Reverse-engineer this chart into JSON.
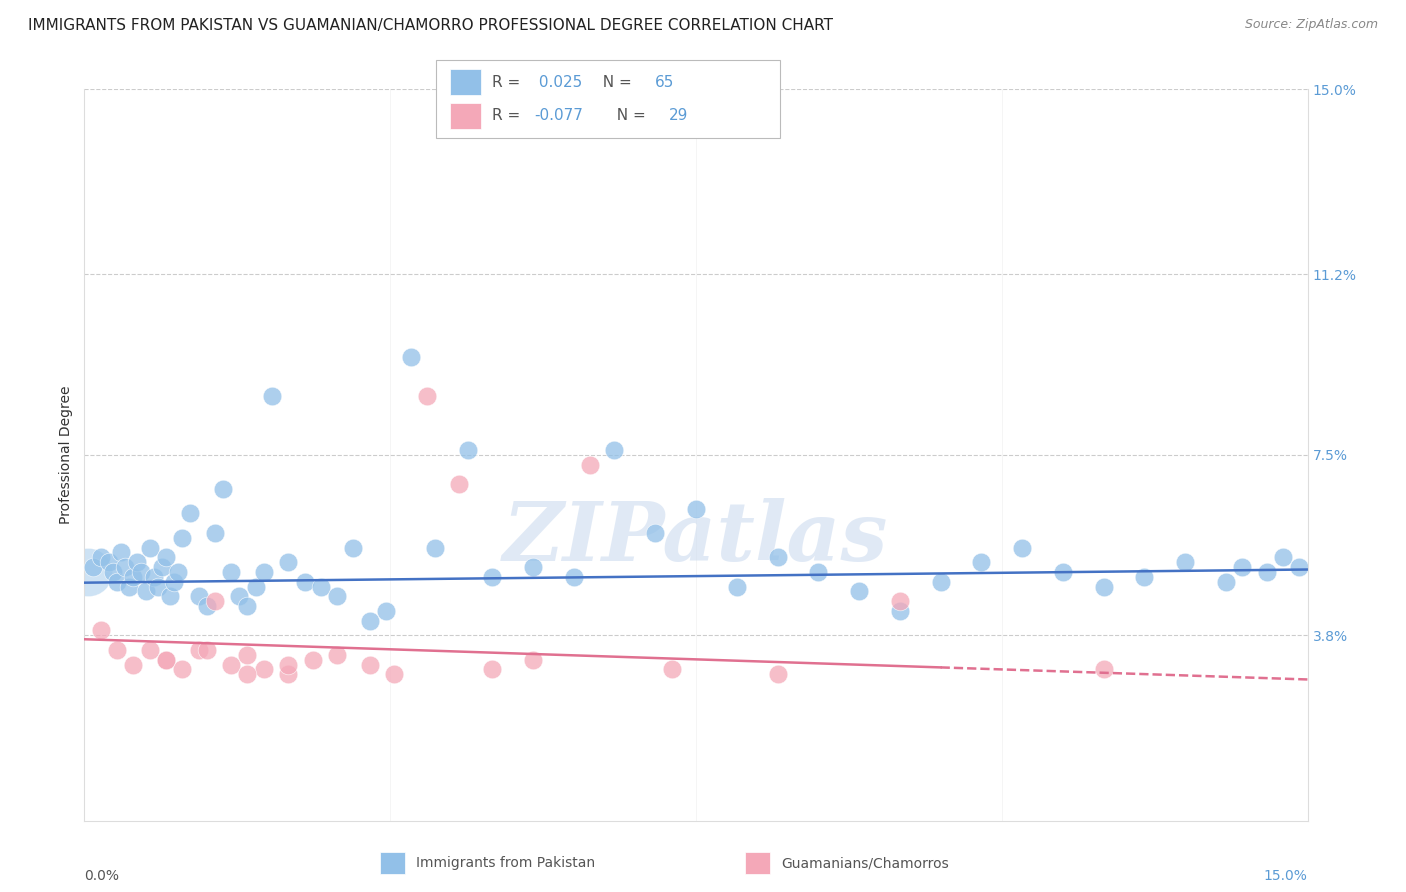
{
  "title": "IMMIGRANTS FROM PAKISTAN VS GUAMANIAN/CHAMORRO PROFESSIONAL DEGREE CORRELATION CHART",
  "source_text": "Source: ZipAtlas.com",
  "ylabel": "Professional Degree",
  "xlim": [
    0.0,
    15.0
  ],
  "ylim": [
    0.0,
    15.0
  ],
  "legend_label1": "Immigrants from Pakistan",
  "legend_label2": "Guamanians/Chamorros",
  "r1": 0.025,
  "n1": 65,
  "r2": -0.077,
  "n2": 29,
  "blue_color": "#92C0E8",
  "pink_color": "#F4A8B8",
  "blue_line_color": "#4472C4",
  "pink_line_color": "#E07090",
  "background_color": "#FFFFFF",
  "grid_color": "#CCCCCC",
  "ytick_vals": [
    3.8,
    7.5,
    11.2,
    15.0
  ],
  "ytick_labels": [
    "3.8%",
    "7.5%",
    "11.2%",
    "15.0%"
  ],
  "blue_x": [
    0.1,
    0.2,
    0.3,
    0.35,
    0.4,
    0.45,
    0.5,
    0.55,
    0.6,
    0.65,
    0.7,
    0.75,
    0.8,
    0.85,
    0.9,
    0.95,
    1.0,
    1.05,
    1.1,
    1.15,
    1.2,
    1.3,
    1.4,
    1.5,
    1.6,
    1.7,
    1.8,
    1.9,
    2.0,
    2.1,
    2.2,
    2.3,
    2.5,
    2.7,
    2.9,
    3.1,
    3.3,
    3.5,
    3.7,
    4.0,
    4.3,
    4.7,
    5.0,
    5.5,
    6.0,
    6.5,
    7.0,
    7.5,
    8.0,
    8.5,
    9.0,
    9.5,
    10.0,
    10.5,
    11.0,
    11.5,
    12.0,
    12.5,
    13.0,
    13.5,
    14.0,
    14.2,
    14.5,
    14.7,
    14.9
  ],
  "blue_y": [
    5.2,
    5.4,
    5.3,
    5.1,
    4.9,
    5.5,
    5.2,
    4.8,
    5.0,
    5.3,
    5.1,
    4.7,
    5.6,
    5.0,
    4.8,
    5.2,
    5.4,
    4.6,
    4.9,
    5.1,
    5.8,
    6.3,
    4.6,
    4.4,
    5.9,
    6.8,
    5.1,
    4.6,
    4.4,
    4.8,
    5.1,
    8.7,
    5.3,
    4.9,
    4.8,
    4.6,
    5.6,
    4.1,
    4.3,
    9.5,
    5.6,
    7.6,
    5.0,
    5.2,
    5.0,
    7.6,
    5.9,
    6.4,
    4.8,
    5.4,
    5.1,
    4.7,
    4.3,
    4.9,
    5.3,
    5.6,
    5.1,
    4.8,
    5.0,
    5.3,
    4.9,
    5.2,
    5.1,
    5.4,
    5.2
  ],
  "blue_large_x": [
    0.05
  ],
  "blue_large_y": [
    5.1
  ],
  "pink_x": [
    0.2,
    0.4,
    0.6,
    0.8,
    1.0,
    1.2,
    1.4,
    1.6,
    1.8,
    2.0,
    2.2,
    2.5,
    2.8,
    3.1,
    3.5,
    3.8,
    4.2,
    4.6,
    5.0,
    5.5,
    6.2,
    7.2,
    8.5,
    10.0,
    12.5,
    1.0,
    1.5,
    2.0,
    2.5
  ],
  "pink_y": [
    3.9,
    3.5,
    3.2,
    3.5,
    3.3,
    3.1,
    3.5,
    4.5,
    3.2,
    3.4,
    3.1,
    3.0,
    3.3,
    3.4,
    3.2,
    3.0,
    8.7,
    6.9,
    3.1,
    3.3,
    7.3,
    3.1,
    3.0,
    4.5,
    3.1,
    3.3,
    3.5,
    3.0,
    3.2
  ],
  "watermark_text": "ZIPatlas",
  "title_fontsize": 11,
  "axis_label_fontsize": 10,
  "tick_fontsize": 10
}
